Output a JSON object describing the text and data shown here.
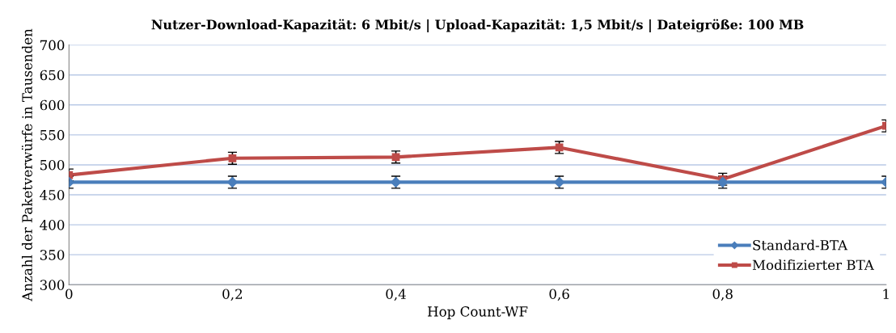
{
  "chart_data": {
    "type": "line",
    "title": "Nutzer-Download-Kapazität: 6 Mbit/s | Upload-Kapazität: 1,5 Mbit/s | Dateigröße: 100 MB",
    "xlabel": "Hop Count-WF",
    "ylabel": "Anzahl der Paketverwürfe in Tausenden",
    "x": [
      0,
      0.2,
      0.4,
      0.6,
      0.8,
      1
    ],
    "series": [
      {
        "name": "Standard-BTA",
        "color": "#4a7ebb",
        "values": [
          471,
          471,
          471,
          471,
          471,
          471
        ],
        "errors": [
          10,
          10,
          10,
          10,
          10,
          10
        ],
        "marker": "diamond"
      },
      {
        "name": "Modifizierter BTA",
        "color": "#be4b48",
        "values": [
          483,
          511,
          513,
          529,
          476,
          565
        ],
        "errors": [
          10,
          10,
          10,
          10,
          10,
          10
        ],
        "marker": "square"
      }
    ],
    "xlim": [
      0,
      1
    ],
    "xticks": [
      0,
      {
        "value": 0.2,
        "label": "0,2"
      },
      {
        "value": 0.4,
        "label": "0,4"
      },
      {
        "value": 0.6,
        "label": "0,6"
      },
      {
        "value": 0.8,
        "label": "0,8"
      },
      1
    ],
    "ylim": [
      300,
      700
    ],
    "yticks": [
      300,
      350,
      400,
      450,
      500,
      550,
      600,
      650,
      700
    ],
    "grid": "y",
    "legend": "bottom right",
    "line_style": "solid"
  }
}
